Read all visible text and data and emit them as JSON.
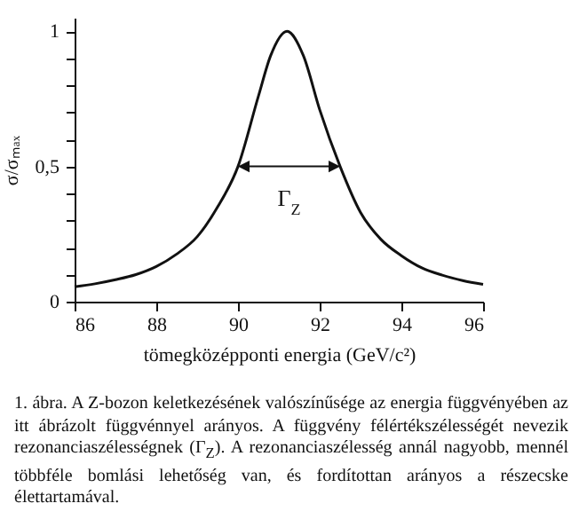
{
  "chart_data": {
    "type": "line",
    "xlabel": "tömegközépponti energia (GeV/c²)",
    "ylabel": "σ/σₘₐₓ",
    "x": [
      86,
      86.5,
      87,
      87.5,
      88,
      88.5,
      89,
      89.5,
      90,
      90.5,
      90.8,
      91.2,
      91.6,
      92,
      92.5,
      93,
      93.5,
      94,
      94.5,
      95,
      95.5,
      96
    ],
    "series": [
      {
        "color": "#111111",
        "values": [
          0.055,
          0.066,
          0.081,
          0.1,
          0.13,
          0.176,
          0.24,
          0.35,
          0.5,
          0.76,
          0.91,
          1,
          0.91,
          0.71,
          0.5,
          0.33,
          0.23,
          0.17,
          0.125,
          0.098,
          0.078,
          0.064
        ]
      }
    ],
    "xlim": [
      86,
      96
    ],
    "xticks": [
      86,
      88,
      90,
      92,
      94,
      96
    ],
    "ylim": [
      0,
      1.05
    ],
    "yticks": [
      0,
      {
        "value": 0.1,
        "label": null
      },
      {
        "value": 0.2,
        "label": null
      },
      {
        "value": 0.3,
        "label": null
      },
      {
        "value": 0.4,
        "label": null
      },
      {
        "value": 0.5,
        "label": "0,5"
      },
      {
        "value": 0.6,
        "label": null
      },
      {
        "value": 0.7,
        "label": null
      },
      {
        "value": 0.8,
        "label": null
      },
      {
        "value": 0.9,
        "label": null
      },
      1
    ],
    "grid": false,
    "legend": false,
    "marker": "none",
    "line_style": "solid",
    "annotations": [
      "Γ$_{Z}$",
      "1. ábra. A Z-bozon keletkezésének valószínűsége az energia függvényében az itt ábrázolt függvénnyel arányos. A függvény félértékszélességét nevezik rezonanciaszélességnek (Γ$_{Z}$). A rezonanciaszélesség annál nagyobb, mennél többféle bomlási lehetőség van, és fordítottan arányos a részecske élettartamával."
    ]
  }
}
